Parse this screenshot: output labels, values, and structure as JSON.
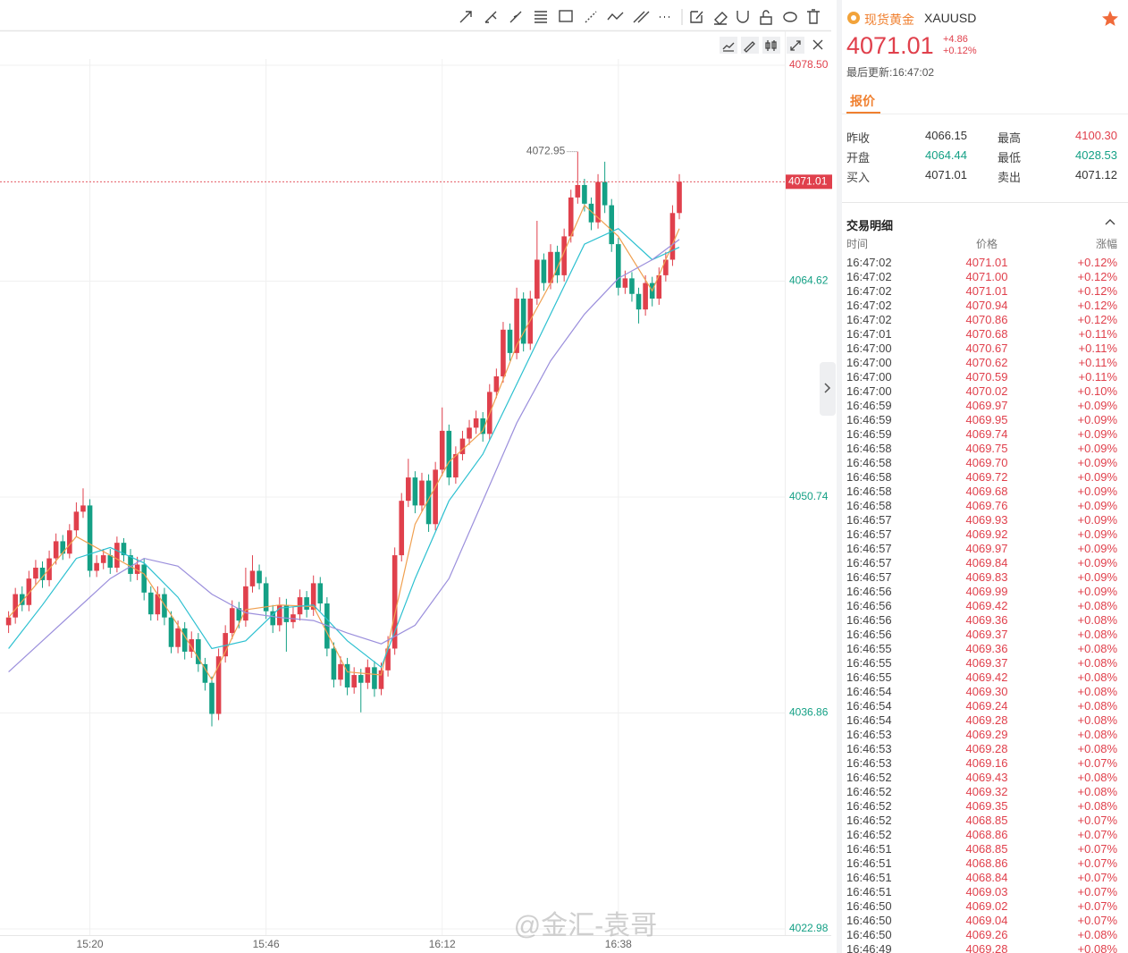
{
  "chart": {
    "type": "candlestick",
    "candles": [
      [
        4042.5,
        4043.4,
        4042.0,
        4043.0
      ],
      [
        4043.0,
        4044.9,
        4042.6,
        4044.5
      ],
      [
        4044.5,
        4045.0,
        4043.4,
        4043.8
      ],
      [
        4043.8,
        4046.0,
        4043.4,
        4045.5
      ],
      [
        4045.5,
        4046.7,
        4045.1,
        4046.2
      ],
      [
        4046.2,
        4046.6,
        4044.9,
        4045.4
      ],
      [
        4045.4,
        4047.3,
        4045.0,
        4046.8
      ],
      [
        4046.8,
        4048.4,
        4046.4,
        4047.9
      ],
      [
        4047.9,
        4048.3,
        4046.7,
        4047.1
      ],
      [
        4047.1,
        4049.0,
        4046.8,
        4048.6
      ],
      [
        4048.6,
        4050.4,
        4048.2,
        4049.8
      ],
      [
        4049.8,
        4051.3,
        4049.4,
        4050.2
      ],
      [
        4050.2,
        4050.6,
        4045.6,
        4046.0
      ],
      [
        4046.0,
        4047.0,
        4045.6,
        4046.5
      ],
      [
        4046.5,
        4047.4,
        4046.1,
        4047.0
      ],
      [
        4047.0,
        4047.4,
        4045.8,
        4046.2
      ],
      [
        4046.2,
        4048.2,
        4045.9,
        4047.8
      ],
      [
        4047.8,
        4048.1,
        4046.6,
        4047.0
      ],
      [
        4047.0,
        4047.4,
        4045.3,
        4045.8
      ],
      [
        4045.8,
        4046.9,
        4045.4,
        4046.4
      ],
      [
        4046.4,
        4046.8,
        4044.1,
        4044.6
      ],
      [
        4044.6,
        4045.0,
        4042.8,
        4043.2
      ],
      [
        4043.2,
        4045.0,
        4042.8,
        4044.5
      ],
      [
        4044.5,
        4044.9,
        4042.5,
        4043.0
      ],
      [
        4043.0,
        4043.4,
        4040.7,
        4041.1
      ],
      [
        4041.1,
        4042.8,
        4040.7,
        4042.3
      ],
      [
        4042.3,
        4042.7,
        4040.3,
        4040.8
      ],
      [
        4040.8,
        4042.1,
        4040.4,
        4041.6
      ],
      [
        4041.6,
        4042.0,
        4039.5,
        4040.0
      ],
      [
        4040.0,
        4040.4,
        4038.3,
        4038.8
      ],
      [
        4038.8,
        4039.2,
        4036.0,
        4036.8
      ],
      [
        4036.8,
        4041.0,
        4036.4,
        4040.5
      ],
      [
        4040.5,
        4042.5,
        4040.1,
        4042.0
      ],
      [
        4042.0,
        4044.1,
        4041.6,
        4043.6
      ],
      [
        4043.6,
        4044.0,
        4042.3,
        4042.8
      ],
      [
        4042.8,
        4046.2,
        4042.4,
        4045.0
      ],
      [
        4045.0,
        4047.0,
        4044.6,
        4046.0
      ],
      [
        4046.0,
        4046.4,
        4044.8,
        4045.2
      ],
      [
        4045.2,
        4045.6,
        4042.9,
        4043.4
      ],
      [
        4043.4,
        4043.8,
        4042.0,
        4042.5
      ],
      [
        4042.5,
        4044.3,
        4042.1,
        4043.8
      ],
      [
        4043.8,
        4044.2,
        4040.8,
        4042.7
      ],
      [
        4042.7,
        4043.7,
        4042.3,
        4043.2
      ],
      [
        4043.2,
        4044.8,
        4042.8,
        4044.3
      ],
      [
        4044.3,
        4044.7,
        4043.0,
        4043.5
      ],
      [
        4043.5,
        4045.7,
        4043.1,
        4045.2
      ],
      [
        4045.2,
        4045.6,
        4043.4,
        4043.9
      ],
      [
        4043.9,
        4044.3,
        4040.5,
        4041.0
      ],
      [
        4041.0,
        4041.4,
        4038.5,
        4039.0
      ],
      [
        4039.0,
        4040.5,
        4038.6,
        4040.0
      ],
      [
        4040.0,
        4040.4,
        4038.0,
        4038.5
      ],
      [
        4038.5,
        4039.8,
        4038.1,
        4039.3
      ],
      [
        4039.3,
        4039.7,
        4036.9,
        4038.8
      ],
      [
        4038.8,
        4040.3,
        4038.4,
        4039.8
      ],
      [
        4039.8,
        4040.2,
        4037.9,
        4038.4
      ],
      [
        4038.4,
        4040.1,
        4038.0,
        4039.6
      ],
      [
        4039.6,
        4041.8,
        4039.2,
        4041.0
      ],
      [
        4041.0,
        4047.5,
        4040.6,
        4047.0
      ],
      [
        4047.0,
        4051.0,
        4046.6,
        4050.5
      ],
      [
        4050.5,
        4053.2,
        4050.1,
        4052.0
      ],
      [
        4052.0,
        4052.4,
        4049.7,
        4050.2
      ],
      [
        4050.2,
        4052.3,
        4049.8,
        4051.8
      ],
      [
        4051.8,
        4052.2,
        4048.5,
        4049.0
      ],
      [
        4049.0,
        4053.0,
        4048.6,
        4052.5
      ],
      [
        4052.5,
        4056.5,
        4052.1,
        4055.0
      ],
      [
        4055.0,
        4055.4,
        4051.5,
        4052.0
      ],
      [
        4052.0,
        4054.0,
        4051.6,
        4053.5
      ],
      [
        4053.5,
        4055.0,
        4053.1,
        4054.5
      ],
      [
        4054.5,
        4055.7,
        4054.1,
        4055.2
      ],
      [
        4055.2,
        4056.3,
        4054.8,
        4055.8
      ],
      [
        4055.8,
        4056.2,
        4054.3,
        4054.8
      ],
      [
        4054.8,
        4058.0,
        4054.4,
        4057.5
      ],
      [
        4057.5,
        4059.0,
        4057.1,
        4058.5
      ],
      [
        4058.5,
        4062.0,
        4058.1,
        4061.5
      ],
      [
        4061.5,
        4061.9,
        4059.5,
        4060.0
      ],
      [
        4060.0,
        4064.2,
        4059.6,
        4063.5
      ],
      [
        4063.5,
        4063.9,
        4060.1,
        4060.6
      ],
      [
        4060.6,
        4064.0,
        4060.2,
        4063.5
      ],
      [
        4063.5,
        4068.5,
        4063.1,
        4066.0
      ],
      [
        4066.0,
        4066.4,
        4064.0,
        4064.5
      ],
      [
        4064.5,
        4067.0,
        4064.1,
        4066.5
      ],
      [
        4066.5,
        4066.9,
        4064.5,
        4065.0
      ],
      [
        4065.0,
        4068.0,
        4064.6,
        4067.5
      ],
      [
        4067.5,
        4070.5,
        4067.1,
        4070.0
      ],
      [
        4070.0,
        4072.95,
        4069.6,
        4070.8
      ],
      [
        4070.8,
        4071.2,
        4069.1,
        4069.6
      ],
      [
        4069.6,
        4070.0,
        4067.9,
        4068.4
      ],
      [
        4068.4,
        4071.5,
        4068.0,
        4071.0
      ],
      [
        4071.0,
        4072.3,
        4069.0,
        4069.5
      ],
      [
        4069.5,
        4069.9,
        4066.5,
        4067.0
      ],
      [
        4067.0,
        4067.4,
        4063.7,
        4064.2
      ],
      [
        4064.2,
        4065.3,
        4063.8,
        4064.8
      ],
      [
        4064.8,
        4065.2,
        4063.3,
        4063.8
      ],
      [
        4063.8,
        4064.2,
        4061.9,
        4062.8
      ],
      [
        4062.8,
        4065.0,
        4062.4,
        4064.5
      ],
      [
        4064.5,
        4064.9,
        4063.0,
        4063.5
      ],
      [
        4063.5,
        4065.5,
        4063.1,
        4065.0
      ],
      [
        4065.0,
        4066.5,
        4064.6,
        4066.0
      ],
      [
        4066.0,
        4069.5,
        4065.6,
        4069.0
      ],
      [
        4069.0,
        4071.5,
        4068.6,
        4071.01
      ]
    ],
    "up_color": "#e0404c",
    "down_color": "#14a085",
    "ma": [
      {
        "color": "#f0a050",
        "x": [
          0,
          5,
          10,
          15,
          20,
          25,
          30,
          35,
          40,
          45,
          50,
          55,
          60,
          65,
          70,
          75,
          80,
          85,
          90,
          95,
          99
        ],
        "values": [
          4043.0,
          4045.6,
          4048.2,
          4047.0,
          4045.8,
          4042.5,
          4039.0,
          4043.5,
          4043.8,
          4043.7,
          4039.5,
          4039.3,
          4049.0,
          4053.0,
          4055.0,
          4060.5,
          4064.5,
          4069.5,
          4067.5,
          4064.0,
          4068.0
        ]
      },
      {
        "color": "#2cc0d0",
        "x": [
          0,
          5,
          10,
          15,
          20,
          25,
          30,
          35,
          40,
          45,
          50,
          55,
          60,
          65,
          70,
          75,
          80,
          85,
          90,
          95,
          99
        ],
        "values": [
          4041.0,
          4043.8,
          4046.8,
          4047.5,
          4046.5,
          4044.3,
          4041.0,
          4041.5,
          4043.6,
          4043.8,
          4041.5,
          4039.8,
          4045.5,
          4050.5,
          4053.5,
          4058.0,
          4062.5,
          4067.0,
          4068.0,
          4066.0,
          4066.8
        ]
      },
      {
        "color": "#9b8fdc",
        "x": [
          0,
          5,
          10,
          15,
          20,
          25,
          30,
          35,
          40,
          45,
          50,
          55,
          60,
          65,
          70,
          75,
          80,
          85,
          90,
          95,
          99
        ],
        "values": [
          4039.5,
          4041.5,
          4043.5,
          4045.5,
          4046.8,
          4046.3,
          4044.5,
          4043.3,
          4043.0,
          4042.8,
          4042.0,
          4041.3,
          4042.5,
          4045.5,
          4050.5,
          4055.5,
          4059.5,
          4062.5,
          4064.8,
          4066.0,
          4067.3
        ]
      }
    ],
    "ylim": [
      4022.98,
      4078.5
    ],
    "yticks": [
      4022.98,
      4036.86,
      4050.74,
      4064.62,
      {
        "value": 4078.5,
        "label": "4078.50"
      }
    ],
    "ytick_colors": [
      "#14a085",
      "#14a085",
      "#14a085",
      "#14a085",
      "#e0404c"
    ],
    "xticks": [
      {
        "value": 12,
        "label": "15:20"
      },
      {
        "value": 38,
        "label": "15:46"
      },
      {
        "value": 64,
        "label": "16:12"
      },
      {
        "value": 90,
        "label": "16:38"
      }
    ],
    "grid": true
  },
  "quote": {
    "name": "现货黄金",
    "symbol": "XAUUSD",
    "price": "4071.01",
    "change": "+4.86",
    "change_pct": "+0.12%",
    "updated": "最后更新:16:47:02",
    "tab": "报价",
    "stats": [
      [
        "昨收",
        "4066.15",
        "最高",
        "4100.30"
      ],
      [
        "开盘",
        "4064.44",
        "最低",
        "4028.53"
      ],
      [
        "买入",
        "4071.01",
        "卖出",
        "4071.12"
      ]
    ]
  },
  "trades": {
    "title": "交易明细",
    "columns": [
      "时间",
      "价格",
      "涨幅"
    ],
    "rows": [
      [
        "16:47:02",
        "4071.01",
        "+0.12%"
      ],
      [
        "16:47:02",
        "4071.00",
        "+0.12%"
      ],
      [
        "16:47:02",
        "4071.01",
        "+0.12%"
      ],
      [
        "16:47:02",
        "4070.94",
        "+0.12%"
      ],
      [
        "16:47:02",
        "4070.86",
        "+0.12%"
      ],
      [
        "16:47:01",
        "4070.68",
        "+0.11%"
      ],
      [
        "16:47:00",
        "4070.67",
        "+0.11%"
      ],
      [
        "16:47:00",
        "4070.62",
        "+0.11%"
      ],
      [
        "16:47:00",
        "4070.59",
        "+0.11%"
      ],
      [
        "16:47:00",
        "4070.02",
        "+0.10%"
      ],
      [
        "16:46:59",
        "4069.97",
        "+0.09%"
      ],
      [
        "16:46:59",
        "4069.95",
        "+0.09%"
      ],
      [
        "16:46:59",
        "4069.74",
        "+0.09%"
      ],
      [
        "16:46:58",
        "4069.75",
        "+0.09%"
      ],
      [
        "16:46:58",
        "4069.70",
        "+0.09%"
      ],
      [
        "16:46:58",
        "4069.72",
        "+0.09%"
      ],
      [
        "16:46:58",
        "4069.68",
        "+0.09%"
      ],
      [
        "16:46:58",
        "4069.76",
        "+0.09%"
      ],
      [
        "16:46:57",
        "4069.93",
        "+0.09%"
      ],
      [
        "16:46:57",
        "4069.92",
        "+0.09%"
      ],
      [
        "16:46:57",
        "4069.97",
        "+0.09%"
      ],
      [
        "16:46:57",
        "4069.84",
        "+0.09%"
      ],
      [
        "16:46:57",
        "4069.83",
        "+0.09%"
      ],
      [
        "16:46:56",
        "4069.99",
        "+0.09%"
      ],
      [
        "16:46:56",
        "4069.42",
        "+0.08%"
      ],
      [
        "16:46:56",
        "4069.36",
        "+0.08%"
      ],
      [
        "16:46:56",
        "4069.37",
        "+0.08%"
      ],
      [
        "16:46:55",
        "4069.36",
        "+0.08%"
      ],
      [
        "16:46:55",
        "4069.37",
        "+0.08%"
      ],
      [
        "16:46:55",
        "4069.42",
        "+0.08%"
      ],
      [
        "16:46:54",
        "4069.30",
        "+0.08%"
      ],
      [
        "16:46:54",
        "4069.24",
        "+0.08%"
      ],
      [
        "16:46:54",
        "4069.28",
        "+0.08%"
      ],
      [
        "16:46:53",
        "4069.29",
        "+0.08%"
      ],
      [
        "16:46:53",
        "4069.28",
        "+0.08%"
      ],
      [
        "16:46:53",
        "4069.16",
        "+0.07%"
      ],
      [
        "16:46:52",
        "4069.43",
        "+0.08%"
      ],
      [
        "16:46:52",
        "4069.32",
        "+0.08%"
      ],
      [
        "16:46:52",
        "4069.35",
        "+0.08%"
      ],
      [
        "16:46:52",
        "4068.85",
        "+0.07%"
      ],
      [
        "16:46:52",
        "4068.86",
        "+0.07%"
      ],
      [
        "16:46:51",
        "4068.85",
        "+0.07%"
      ],
      [
        "16:46:51",
        "4068.86",
        "+0.07%"
      ],
      [
        "16:46:51",
        "4068.84",
        "+0.07%"
      ],
      [
        "16:46:51",
        "4069.03",
        "+0.07%"
      ],
      [
        "16:46:50",
        "4069.02",
        "+0.07%"
      ],
      [
        "16:46:50",
        "4069.04",
        "+0.07%"
      ],
      [
        "16:46:50",
        "4069.26",
        "+0.08%"
      ],
      [
        "16:46:49",
        "4069.28",
        "+0.08%"
      ]
    ]
  },
  "watermark": "@金汇-袁哥"
}
